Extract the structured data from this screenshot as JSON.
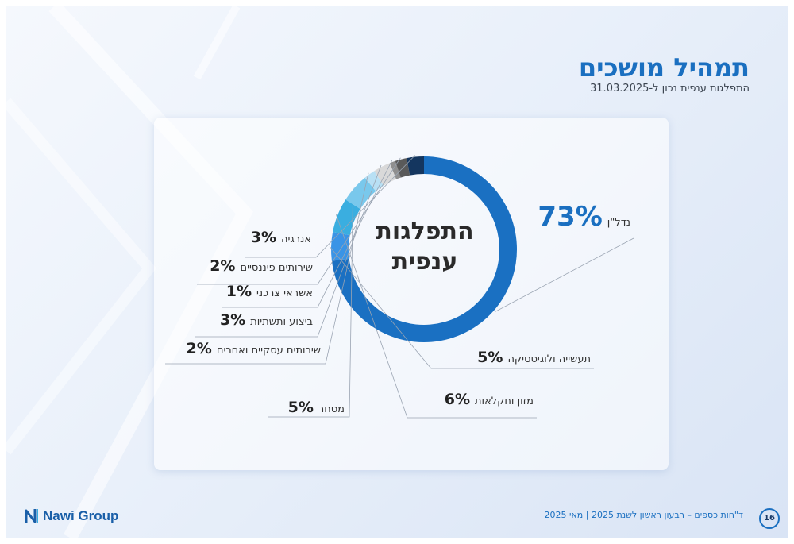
{
  "header": {
    "title": "תמהיל מושכים",
    "subtitle": "התפלגות ענפית נכון ל-31.03.2025"
  },
  "chart_center_label": "התפלגות\nענפית",
  "footer": {
    "text": "ד\"חות כספים – רבעון ראשון לשנת 2025 | מאי 2025",
    "page_number": "16",
    "logo_text": "Nawi Group"
  },
  "chart_data": {
    "type": "pie",
    "donut": true,
    "title": "התפלגות ענפית",
    "slices": [
      {
        "label": "נדל\"ן",
        "value": 73,
        "display": "73%",
        "color": "#1a70c2"
      },
      {
        "label": "תעשייה ולוגיסטיקה",
        "value": 5,
        "display": "5%",
        "color": "#3a94e6"
      },
      {
        "label": "מזון וחקלאות",
        "value": 6,
        "display": "6%",
        "color": "#3aaee0"
      },
      {
        "label": "מסחר",
        "value": 5,
        "display": "5%",
        "color": "#79c8ec"
      },
      {
        "label": "שירותים עסקיים ואחרים",
        "value": 2,
        "display": "2%",
        "color": "#b8e0f4"
      },
      {
        "label": "ביצוע ותשתיות",
        "value": 3,
        "display": "3%",
        "color": "#d9d9d9"
      },
      {
        "label": "אשראי צרכני",
        "value": 1,
        "display": "1%",
        "color": "#8f8f8f"
      },
      {
        "label": "שירותים פיננסיים",
        "value": 2,
        "display": "2%",
        "color": "#5a5a5a"
      },
      {
        "label": "אנרגיה",
        "value": 3,
        "display": "3%",
        "color": "#14365f"
      }
    ]
  }
}
